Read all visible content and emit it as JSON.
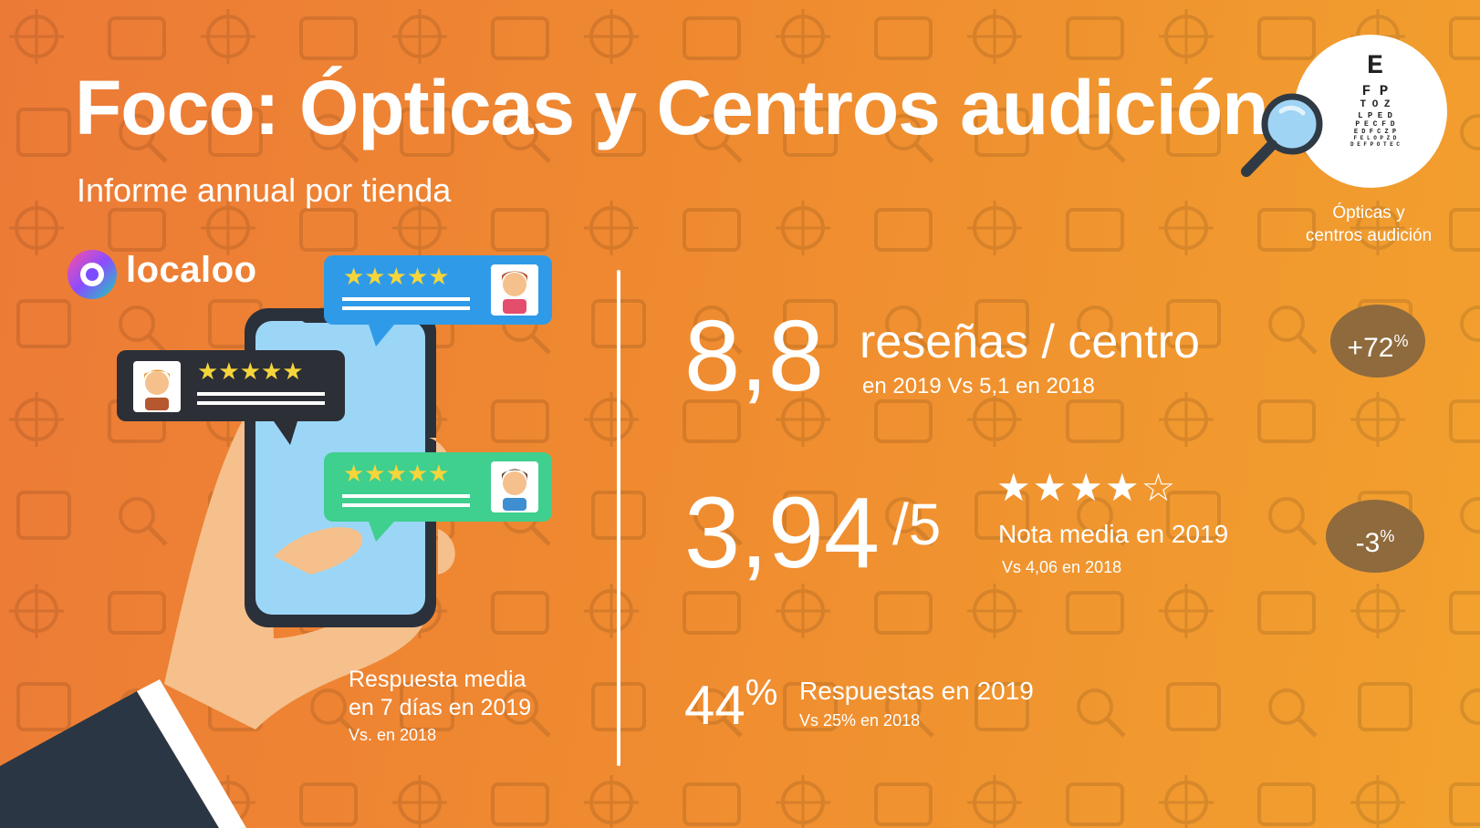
{
  "title": "Foco: Ópticas y Centros audición",
  "subtitle": "Informe annual por tienda",
  "brand": {
    "name": "localoo",
    "icon": "localoo-logo-icon"
  },
  "badge": {
    "icon": "eye-chart-magnifier-icon",
    "chart_lines": [
      "E",
      "F P",
      "T O Z",
      "L P E D",
      "P E C F D",
      "E D F C Z P",
      "F E L O P Z D",
      "D E F P O T E C"
    ],
    "caption_line1": "Ópticas y",
    "caption_line2": "centros audición"
  },
  "metric_reviews": {
    "value": "8,8",
    "label": "reseñas / centro",
    "sub": "en 2019  Vs 5,1 en 2018",
    "change": "+72",
    "change_unit": "%"
  },
  "metric_rating": {
    "value": "3,94",
    "scale": "/5",
    "stars_filled": 4,
    "stars_total": 5,
    "label": "Nota media en 2019",
    "sub": "Vs 4,06 en 2018",
    "change": "-3",
    "change_unit": "%"
  },
  "metric_responses": {
    "value": "44",
    "unit": "%",
    "label": "Respuestas en 2019",
    "sub": "Vs 25% en 2018"
  },
  "response_time": {
    "line1": "Respuesta media",
    "line2": "en 7 días en 2019",
    "sub": "Vs. en 2018"
  },
  "colors": {
    "bg_start": "#ec7a37",
    "bg_end": "#f2a12e",
    "pill": "#8e6a3d",
    "bubble_blue": "#2f9be8",
    "bubble_dark": "#2c2f36",
    "bubble_green": "#3fcf8e",
    "star": "#f6d53b"
  }
}
